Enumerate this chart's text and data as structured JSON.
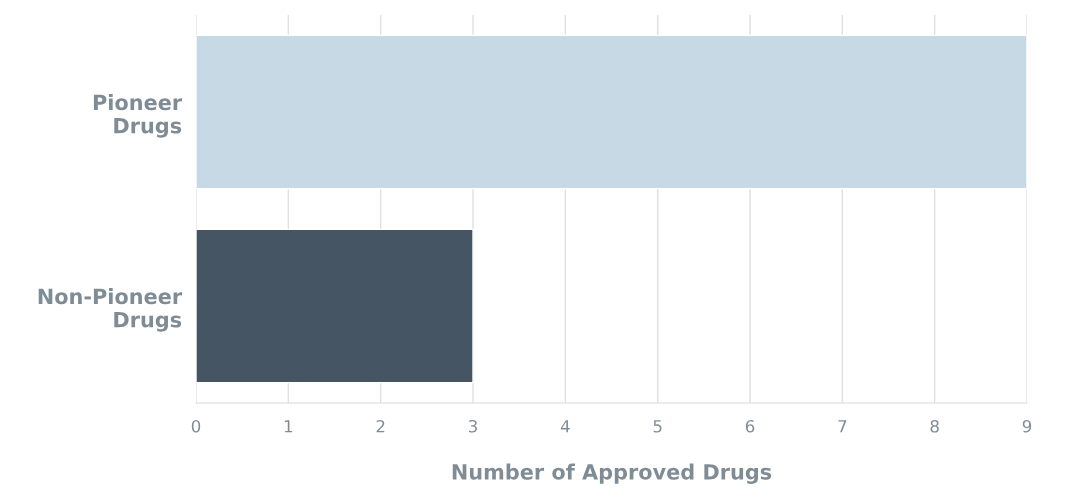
{
  "chart_data": {
    "type": "bar",
    "orientation": "horizontal",
    "categories": [
      "Pioneer\nDrugs",
      "Non-Pioneer\nDrugs"
    ],
    "values": [
      9,
      3
    ],
    "colors": [
      "#c8d9e6",
      "#465563"
    ],
    "xlabel": "Number of Approved Drugs",
    "xlim": [
      0,
      9
    ],
    "xticks": [
      0,
      1,
      2,
      3,
      4,
      5,
      6,
      7,
      8,
      9
    ],
    "grid": "x"
  }
}
